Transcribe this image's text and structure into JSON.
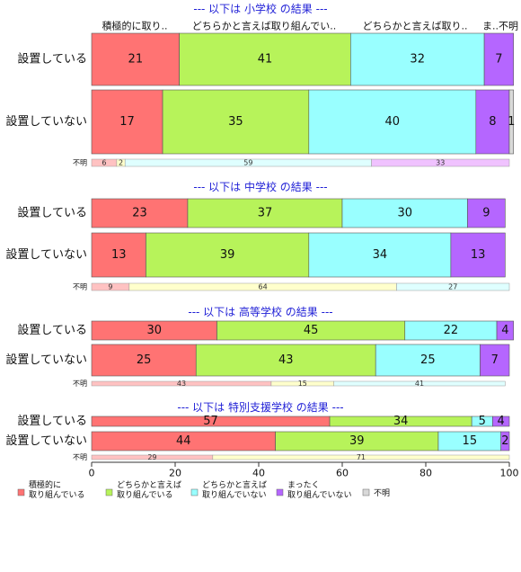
{
  "chart_data": {
    "type": "bar",
    "orientation": "horizontal",
    "stacked": true,
    "xlim": [
      0,
      100
    ],
    "xticks": [
      0,
      20,
      40,
      60,
      80,
      100
    ],
    "column_headers": [
      "積極的に取り..",
      "どちらかと言えば取り組んでい..",
      "どちらかと言えば取り..",
      "ま..",
      "不明"
    ],
    "legend": [
      {
        "label": "積極的に\n取り組んでいる",
        "color": "#ff7373"
      },
      {
        "label": "どちらかと言えば\n取り組んでいる",
        "color": "#b7f35a"
      },
      {
        "label": "どちらかと言えば\n取り組んでいない",
        "color": "#99ffff"
      },
      {
        "label": "まったく\n取り組んでいない",
        "color": "#b566ff"
      },
      {
        "label": "不明",
        "color": "#d9d9d9"
      }
    ],
    "unknown_colors": [
      "#ffc2c2",
      "#ffffcc",
      "#dfffff",
      "#f0c2ff"
    ],
    "sections": [
      {
        "title": "--- 以下は 小学校 の結果 ---",
        "rows": [
          {
            "label": "設置している",
            "values": [
              21,
              41,
              32,
              7,
              0
            ],
            "labels": [
              "21",
              "41",
              "32",
              "7",
              ""
            ]
          },
          {
            "label": "設置していない",
            "values": [
              17,
              35,
              40,
              8,
              1
            ],
            "labels": [
              "17",
              "35",
              "40",
              "8",
              "1"
            ]
          }
        ],
        "unknown": {
          "label": "不明",
          "values": [
            6,
            2,
            59,
            33
          ],
          "labels": [
            "6",
            "2",
            "59",
            "33"
          ]
        }
      },
      {
        "title": "--- 以下は 中学校 の結果 ---",
        "rows": [
          {
            "label": "設置している",
            "values": [
              23,
              37,
              30,
              9,
              0
            ],
            "labels": [
              "23",
              "37",
              "30",
              "9",
              ""
            ]
          },
          {
            "label": "設置していない",
            "values": [
              13,
              39,
              34,
              13,
              0
            ],
            "labels": [
              "13",
              "39",
              "34",
              "13",
              ""
            ]
          }
        ],
        "unknown": {
          "label": "不明",
          "values": [
            9,
            64,
            27
          ],
          "labels": [
            "9",
            "64",
            "27"
          ],
          "colors": [
            "#ffc2c2",
            "#ffffcc",
            "#dfffff"
          ]
        }
      },
      {
        "title": "--- 以下は 高等学校 の結果 ---",
        "rows": [
          {
            "label": "設置している",
            "values": [
              30,
              45,
              22,
              4,
              0
            ],
            "labels": [
              "30",
              "45",
              "22",
              "4",
              ""
            ]
          },
          {
            "label": "設置していない",
            "values": [
              25,
              43,
              25,
              7,
              0
            ],
            "labels": [
              "25",
              "43",
              "25",
              "7",
              ""
            ]
          }
        ],
        "unknown": {
          "label": "不明",
          "values": [
            43,
            15,
            41
          ],
          "labels": [
            "43",
            "15",
            "41"
          ],
          "colors": [
            "#ffc2c2",
            "#ffffcc",
            "#dfffff"
          ]
        }
      },
      {
        "title": "--- 以下は 特別支援学校 の結果 ---",
        "rows": [
          {
            "label": "設置している",
            "values": [
              57,
              34,
              5,
              4,
              0
            ],
            "labels": [
              "57",
              "34",
              "5",
              "4",
              ""
            ]
          },
          {
            "label": "設置していない",
            "values": [
              44,
              39,
              15,
              2,
              0
            ],
            "labels": [
              "44",
              "39",
              "15",
              "2",
              ""
            ]
          }
        ],
        "unknown": {
          "label": "不明",
          "values": [
            29,
            71
          ],
          "labels": [
            "29",
            "71"
          ],
          "colors": [
            "#ffc2c2",
            "#ffffcc"
          ]
        }
      }
    ]
  }
}
